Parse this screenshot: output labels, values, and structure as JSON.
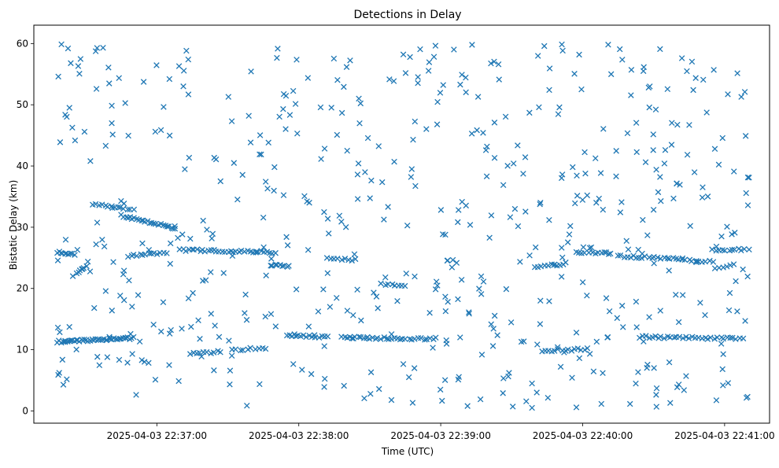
{
  "chart_data": {
    "type": "scatter",
    "title": "Detections in Delay",
    "xlabel": "Time (UTC)",
    "ylabel": "Bistatic Delay (km)",
    "marker": "x",
    "color": "#1f77b4",
    "grid": false,
    "xlim_seconds": [
      -52,
      259
    ],
    "ylim": [
      -2,
      63
    ],
    "x_reference": "2025-04-03 22:37:00",
    "x_ticks": [
      {
        "t": 0,
        "label": "2025-04-03 22:37:00"
      },
      {
        "t": 60,
        "label": "2025-04-03 22:38:00"
      },
      {
        "t": 120,
        "label": "2025-04-03 22:39:00"
      },
      {
        "t": 180,
        "label": "2025-04-03 22:40:00"
      },
      {
        "t": 240,
        "label": "2025-04-03 22:41:00"
      }
    ],
    "y_ticks": [
      {
        "v": 0,
        "label": "0"
      },
      {
        "v": 10,
        "label": "10"
      },
      {
        "v": 20,
        "label": "20"
      },
      {
        "v": 30,
        "label": "30"
      },
      {
        "v": 40,
        "label": "40"
      },
      {
        "v": 50,
        "label": "50"
      },
      {
        "v": 60,
        "label": "60"
      }
    ],
    "x_range_seconds": [
      -42,
      250
    ],
    "track_segments": [
      {
        "t": [
          -42,
          -10
        ],
        "y": [
          11.3,
          11.9
        ],
        "n": 45
      },
      {
        "t": [
          -42,
          -35
        ],
        "y": [
          25.9,
          25.6
        ],
        "n": 10
      },
      {
        "t": [
          -34,
          -30
        ],
        "y": [
          22.5,
          23.5
        ],
        "n": 7
      },
      {
        "t": [
          -27,
          -10
        ],
        "y": [
          33.8,
          32.8
        ],
        "n": 14
      },
      {
        "t": [
          -15,
          8
        ],
        "y": [
          31.9,
          29.8
        ],
        "n": 26
      },
      {
        "t": [
          -12,
          4
        ],
        "y": [
          25.3,
          25.8
        ],
        "n": 14
      },
      {
        "t": [
          10,
          50
        ],
        "y": [
          26.3,
          25.9
        ],
        "n": 35
      },
      {
        "t": [
          14,
          27
        ],
        "y": [
          9.3,
          9.7
        ],
        "n": 10
      },
      {
        "t": [
          32,
          46
        ],
        "y": [
          9.9,
          10.3
        ],
        "n": 10
      },
      {
        "t": [
          48,
          56
        ],
        "y": [
          23.8,
          23.6
        ],
        "n": 9
      },
      {
        "t": [
          55,
          72
        ],
        "y": [
          12.3,
          12.1
        ],
        "n": 15
      },
      {
        "t": [
          78,
          103
        ],
        "y": [
          12.0,
          11.8
        ],
        "n": 22
      },
      {
        "t": [
          72,
          84
        ],
        "y": [
          24.9,
          24.7
        ],
        "n": 9
      },
      {
        "t": [
          104,
          118
        ],
        "y": [
          11.6,
          11.9
        ],
        "n": 12
      },
      {
        "t": [
          95,
          105
        ],
        "y": [
          20.7,
          20.5
        ],
        "n": 8
      },
      {
        "t": [
          163,
          182
        ],
        "y": [
          9.8,
          10.1
        ],
        "n": 15
      },
      {
        "t": [
          160,
          172
        ],
        "y": [
          23.6,
          23.9
        ],
        "n": 10
      },
      {
        "t": [
          177,
          192
        ],
        "y": [
          25.9,
          25.7
        ],
        "n": 12
      },
      {
        "t": [
          195,
          222
        ],
        "y": [
          25.3,
          24.8
        ],
        "n": 22
      },
      {
        "t": [
          222,
          235
        ],
        "y": [
          24.7,
          24.3
        ],
        "n": 10
      },
      {
        "t": [
          204,
          245
        ],
        "y": [
          12.1,
          11.8
        ],
        "n": 32
      },
      {
        "t": [
          235,
          250
        ],
        "y": [
          26.3,
          26.4
        ],
        "n": 12
      },
      {
        "t": [
          236,
          244
        ],
        "y": [
          23.4,
          23.8
        ],
        "n": 6
      },
      {
        "t": [
          250,
          250
        ],
        "y": [
          38.0,
          38.0
        ],
        "n": 2
      }
    ],
    "clutter_points": 560,
    "clutter_y_range": [
      0.5,
      60.0
    ]
  }
}
